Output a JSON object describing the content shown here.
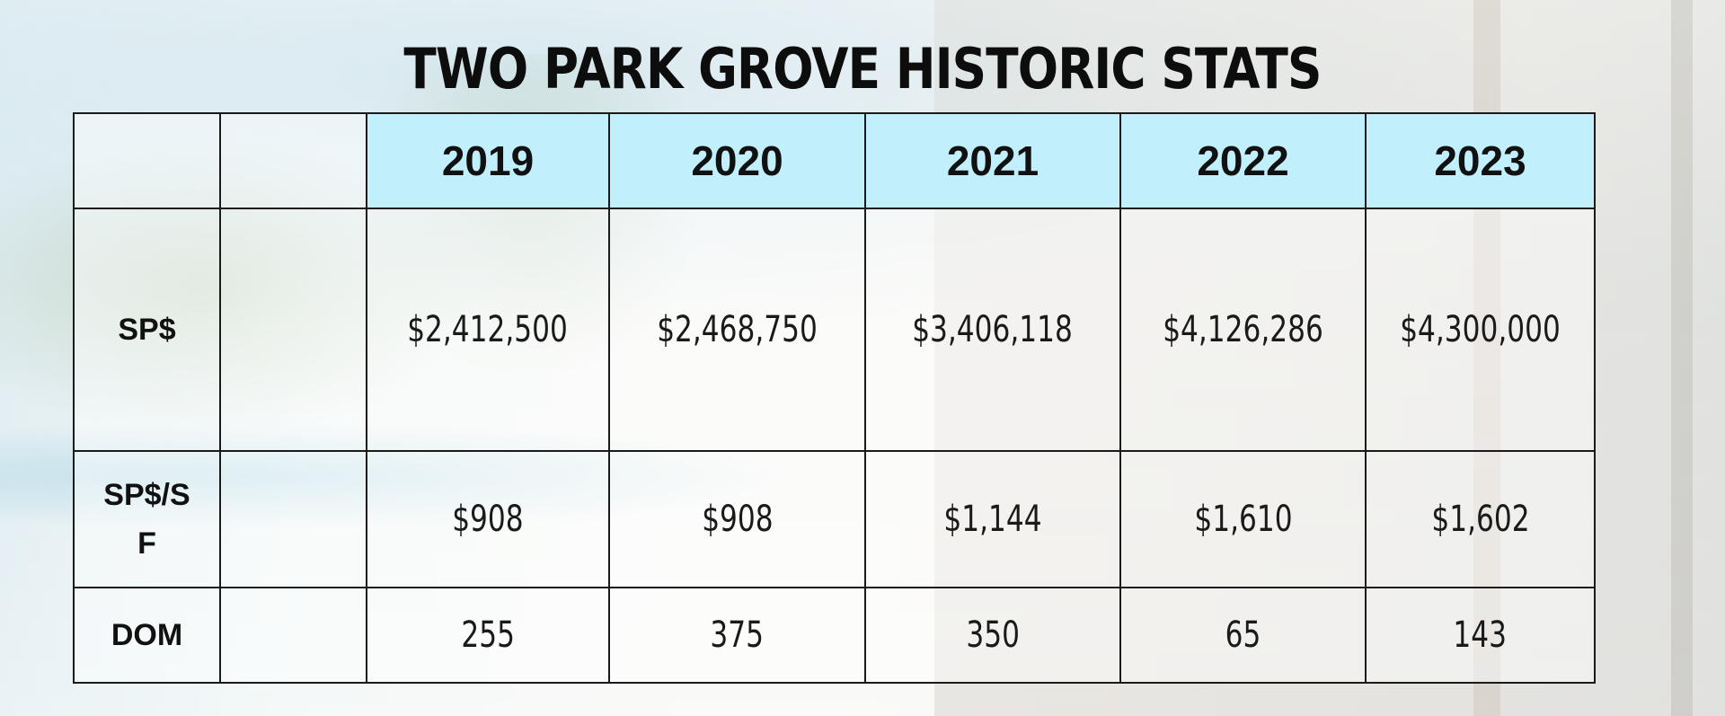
{
  "title": "TWO PARK GROVE HISTORIC STATS",
  "years": [
    "2019",
    "2020",
    "2021",
    "2022",
    "2023"
  ],
  "rows": [
    {
      "label": "SP$",
      "label_line2": "",
      "values": [
        "$2,412,500",
        "$2,468,750",
        "$3,406,118",
        "$4,126,286",
        "$4,300,000"
      ]
    },
    {
      "label": "SP$/S",
      "label_line2": "F",
      "values": [
        "$908",
        "$908",
        "$1,144",
        "$1,610",
        "$1,602"
      ]
    },
    {
      "label": "DOM",
      "label_line2": "",
      "values": [
        "255",
        "375",
        "350",
        "65",
        "143"
      ]
    }
  ],
  "colors": {
    "header_background": "#c1f0fc",
    "border": "#1a1a1a",
    "text": "#111111"
  }
}
